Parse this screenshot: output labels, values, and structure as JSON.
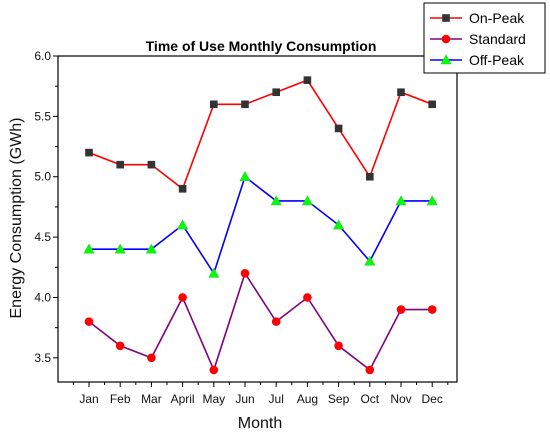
{
  "chart_data": {
    "type": "line",
    "title": "Time of Use Monthly Consumption",
    "xlabel": "Month",
    "ylabel": "Energy Consumption (GWh)",
    "categories": [
      "Jan",
      "Feb",
      "Mar",
      "April",
      "May",
      "Jun",
      "Jul",
      "Aug",
      "Sep",
      "Oct",
      "Nov",
      "Dec"
    ],
    "ylim": [
      3.3,
      6.0
    ],
    "yticks": [
      "3.5",
      "4.0",
      "4.5",
      "5.0",
      "5.5",
      "6.0"
    ],
    "grid": false,
    "legend_position": "top-right",
    "series": [
      {
        "name": "On-Peak",
        "color": "#ff0000",
        "marker": "square",
        "marker_color": "#333333",
        "values": [
          5.2,
          5.1,
          5.1,
          4.9,
          5.6,
          5.6,
          5.7,
          5.8,
          5.4,
          5.0,
          5.7,
          5.6
        ]
      },
      {
        "name": "Standard",
        "color": "#800080",
        "marker": "circle",
        "marker_color": "#ff0000",
        "values": [
          3.8,
          3.6,
          3.5,
          4.0,
          3.4,
          4.2,
          3.8,
          4.0,
          3.6,
          3.4,
          3.9,
          3.9
        ]
      },
      {
        "name": "Off-Peak",
        "color": "#0000ff",
        "marker": "triangle",
        "marker_color": "#00ff00",
        "values": [
          4.4,
          4.4,
          4.4,
          4.6,
          4.2,
          5.0,
          4.8,
          4.8,
          4.6,
          4.3,
          4.8,
          4.8
        ]
      }
    ]
  }
}
